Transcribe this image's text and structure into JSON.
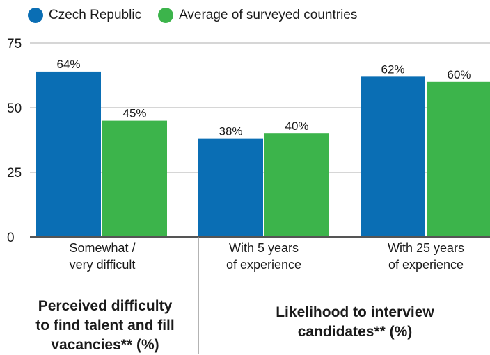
{
  "colors": {
    "czech": "#0a6eb4",
    "average": "#3cb44b",
    "grid": "#c8c8c8",
    "baseline": "#555555",
    "divider": "#9a9a9a"
  },
  "legend": [
    {
      "name": "Czech Republic",
      "color": "#0a6eb4"
    },
    {
      "name": "Average of surveyed countries",
      "color": "#3cb44b"
    }
  ],
  "chart_data": {
    "type": "bar",
    "categories": [
      "Somewhat / very difficult",
      "With 5 years of experience",
      "With 25 years of experience"
    ],
    "category_lines": [
      [
        "Somewhat /",
        "very difficult"
      ],
      [
        "With 5 years",
        "of experience"
      ],
      [
        "With 25 years",
        "of experience"
      ]
    ],
    "series": [
      {
        "name": "Czech Republic",
        "values": [
          64,
          38,
          62
        ],
        "labels": [
          "64%",
          "38%",
          "62%"
        ]
      },
      {
        "name": "Average of surveyed countries",
        "values": [
          45,
          40,
          60
        ],
        "labels": [
          "45%",
          "40%",
          "60%"
        ]
      }
    ],
    "ylim": [
      0,
      75
    ],
    "yticks": [
      0,
      25,
      50,
      75
    ],
    "ytick_labels": [
      "0",
      "25",
      "50",
      "75"
    ],
    "groups": [
      {
        "title_lines": [
          "Perceived difficulty",
          "to find talent and fill",
          "vacancies** (%)"
        ],
        "categories": [
          0
        ]
      },
      {
        "title_lines": [
          "Likelihood to interview",
          "candidates** (%)"
        ],
        "categories": [
          1,
          2
        ]
      }
    ],
    "grid": true,
    "legend_position": "top-left"
  }
}
